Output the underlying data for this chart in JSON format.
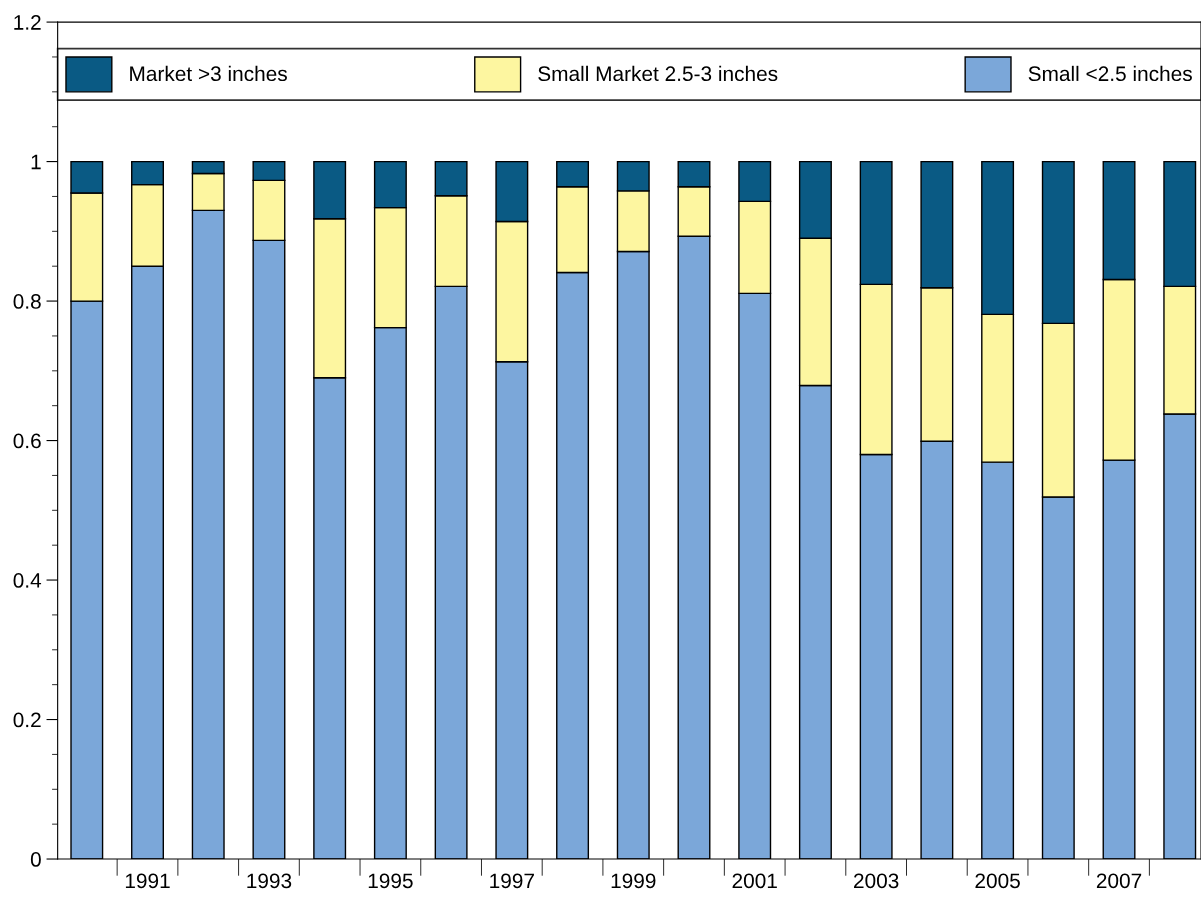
{
  "chart_data": {
    "type": "bar",
    "stacked": true,
    "categories": [
      null,
      "1991",
      null,
      "1993",
      null,
      "1995",
      null,
      "1997",
      null,
      "1999",
      null,
      "2001",
      null,
      "2003",
      null,
      "2005",
      null,
      "2007",
      null
    ],
    "series": [
      {
        "name": "Small <2.5 inches",
        "color": "#7ba7d9",
        "values": [
          0.8,
          0.85,
          0.93,
          0.887,
          0.69,
          0.762,
          0.821,
          0.713,
          0.841,
          0.871,
          0.893,
          0.811,
          0.679,
          0.58,
          0.599,
          0.569,
          0.519,
          0.572,
          0.638
        ]
      },
      {
        "name": "Small Market 2.5-3 inches",
        "color": "#fdf6a0",
        "values": [
          0.155,
          0.117,
          0.053,
          0.086,
          0.228,
          0.172,
          0.13,
          0.201,
          0.123,
          0.087,
          0.071,
          0.132,
          0.211,
          0.244,
          0.22,
          0.212,
          0.249,
          0.259,
          0.183
        ]
      },
      {
        "name": "Market >3 inches",
        "color": "#0a5a84",
        "values": [
          0.045,
          0.033,
          0.017,
          0.027,
          0.082,
          0.066,
          0.049,
          0.086,
          0.036,
          0.042,
          0.036,
          0.057,
          0.11,
          0.176,
          0.181,
          0.219,
          0.232,
          0.169,
          0.179
        ]
      }
    ],
    "ylim": [
      0,
      1.2
    ],
    "yticks": [
      0,
      0.2,
      0.4,
      0.6,
      0.8,
      1,
      1.2
    ],
    "legend": "top",
    "grid": false
  }
}
